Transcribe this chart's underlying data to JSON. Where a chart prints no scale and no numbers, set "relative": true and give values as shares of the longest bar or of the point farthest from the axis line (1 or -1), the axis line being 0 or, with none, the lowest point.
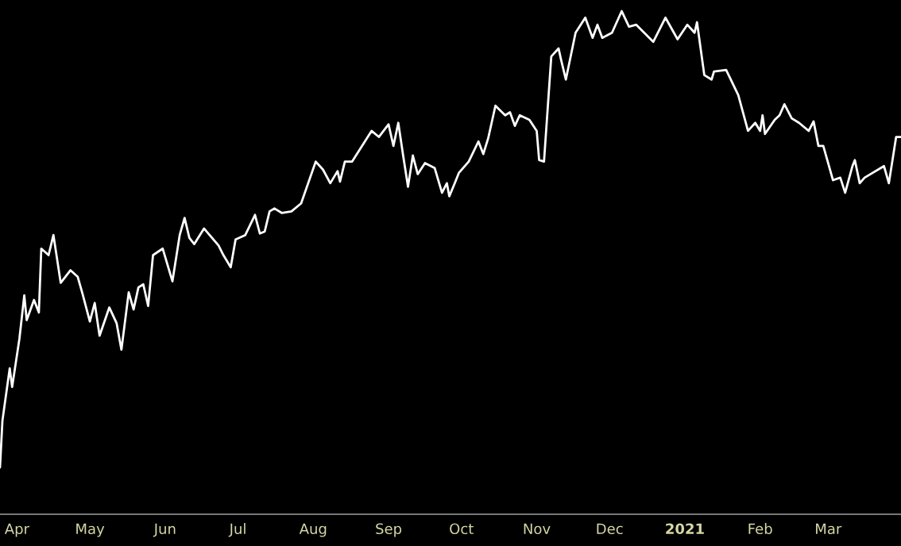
{
  "chart_data": {
    "type": "line",
    "relative": true,
    "x": [
      "2020-03-25",
      "2020-03-26",
      "2020-03-29",
      "2020-03-30",
      "2020-04-02",
      "2020-04-04",
      "2020-04-05",
      "2020-04-08",
      "2020-04-10",
      "2020-04-11",
      "2020-04-14",
      "2020-04-16",
      "2020-04-19",
      "2020-04-23",
      "2020-04-26",
      "2020-04-28",
      "2020-05-01",
      "2020-05-03",
      "2020-05-05",
      "2020-05-09",
      "2020-05-12",
      "2020-05-14",
      "2020-05-17",
      "2020-05-19",
      "2020-05-21",
      "2020-05-23",
      "2020-05-25",
      "2020-05-27",
      "2020-05-31",
      "2020-06-04",
      "2020-06-07",
      "2020-06-09",
      "2020-06-11",
      "2020-06-13",
      "2020-06-17",
      "2020-06-23",
      "2020-06-25",
      "2020-06-28",
      "2020-06-30",
      "2020-07-04",
      "2020-07-08",
      "2020-07-10",
      "2020-07-12",
      "2020-07-14",
      "2020-07-16",
      "2020-07-19",
      "2020-07-23",
      "2020-07-27",
      "2020-08-02",
      "2020-08-05",
      "2020-08-08",
      "2020-08-11",
      "2020-08-12",
      "2020-08-14",
      "2020-08-17",
      "2020-08-25",
      "2020-08-28",
      "2020-09-01",
      "2020-09-03",
      "2020-09-05",
      "2020-09-07",
      "2020-09-09",
      "2020-09-11",
      "2020-09-13",
      "2020-09-16",
      "2020-09-20",
      "2020-09-23",
      "2020-09-25",
      "2020-09-26",
      "2020-09-28",
      "2020-09-30",
      "2020-10-04",
      "2020-10-08",
      "2020-10-10",
      "2020-10-12",
      "2020-10-15",
      "2020-10-19",
      "2020-10-21",
      "2020-10-23",
      "2020-10-25",
      "2020-10-29",
      "2020-11-01",
      "2020-11-02",
      "2020-11-04",
      "2020-11-07",
      "2020-11-10",
      "2020-11-11",
      "2020-11-13",
      "2020-11-17",
      "2020-11-21",
      "2020-11-24",
      "2020-11-26",
      "2020-11-28",
      "2020-12-02",
      "2020-12-06",
      "2020-12-09",
      "2020-12-12",
      "2020-12-19",
      "2020-12-24",
      "2020-12-29",
      "2021-01-02",
      "2021-01-05",
      "2021-01-06",
      "2021-01-09",
      "2021-01-12",
      "2021-01-13",
      "2021-01-18",
      "2021-01-23",
      "2021-01-27",
      "2021-01-30",
      "2021-02-01",
      "2021-02-02",
      "2021-02-03",
      "2021-02-07",
      "2021-02-09",
      "2021-02-11",
      "2021-02-14",
      "2021-02-17",
      "2021-02-21",
      "2021-02-23",
      "2021-02-25",
      "2021-02-27",
      "2021-03-03",
      "2021-03-06",
      "2021-03-08",
      "2021-03-11",
      "2021-03-12",
      "2021-03-14",
      "2021-03-16",
      "2021-03-24",
      "2021-03-26",
      "2021-03-29",
      "2021-03-31"
    ],
    "series": [
      {
        "color": "#ffffff",
        "values": [
          0.093,
          0.186,
          0.29,
          0.253,
          0.349,
          0.435,
          0.386,
          0.426,
          0.401,
          0.528,
          0.515,
          0.555,
          0.46,
          0.485,
          0.472,
          0.438,
          0.383,
          0.42,
          0.355,
          0.411,
          0.38,
          0.327,
          0.441,
          0.407,
          0.451,
          0.457,
          0.414,
          0.515,
          0.528,
          0.463,
          0.555,
          0.589,
          0.549,
          0.537,
          0.568,
          0.534,
          0.515,
          0.491,
          0.546,
          0.555,
          0.595,
          0.558,
          0.562,
          0.602,
          0.608,
          0.599,
          0.602,
          0.618,
          0.701,
          0.685,
          0.658,
          0.682,
          0.661,
          0.701,
          0.701,
          0.762,
          0.75,
          0.775,
          0.732,
          0.778,
          0.713,
          0.651,
          0.713,
          0.676,
          0.698,
          0.688,
          0.639,
          0.658,
          0.632,
          0.655,
          0.679,
          0.701,
          0.741,
          0.716,
          0.747,
          0.812,
          0.793,
          0.799,
          0.772,
          0.793,
          0.784,
          0.762,
          0.704,
          0.701,
          0.91,
          0.926,
          0.904,
          0.864,
          0.957,
          0.987,
          0.947,
          0.973,
          0.947,
          0.957,
          1.0,
          0.969,
          0.973,
          0.939,
          0.987,
          0.944,
          0.973,
          0.957,
          0.978,
          0.873,
          0.864,
          0.88,
          0.883,
          0.833,
          0.762,
          0.778,
          0.762,
          0.793,
          0.756,
          0.784,
          0.793,
          0.815,
          0.787,
          0.778,
          0.762,
          0.781,
          0.732,
          0.732,
          0.664,
          0.669,
          0.639,
          0.692,
          0.704,
          0.658,
          0.669,
          0.692,
          0.658,
          0.75,
          0.75
        ]
      }
    ],
    "xlim": [
      "2020-03-25",
      "2021-03-31"
    ],
    "xticks": [
      {
        "value": "2020-04-01",
        "label": "Apr"
      },
      {
        "value": "2020-05-01",
        "label": "May"
      },
      {
        "value": "2020-06-01",
        "label": "Jun"
      },
      {
        "value": "2020-07-01",
        "label": "Jul"
      },
      {
        "value": "2020-08-01",
        "label": "Aug"
      },
      {
        "value": "2020-09-01",
        "label": "Sep"
      },
      {
        "value": "2020-10-01",
        "label": "Oct"
      },
      {
        "value": "2020-11-01",
        "label": "Nov"
      },
      {
        "value": "2020-12-01",
        "label": "Dec"
      },
      {
        "value": "2021-01-01",
        "label": "2021"
      },
      {
        "value": "2021-02-01",
        "label": "Feb"
      },
      {
        "value": "2021-03-01",
        "label": "Mar"
      }
    ],
    "tick_labels": "x",
    "grid": false,
    "legend": false,
    "line_style": "solid",
    "marker": "none"
  }
}
